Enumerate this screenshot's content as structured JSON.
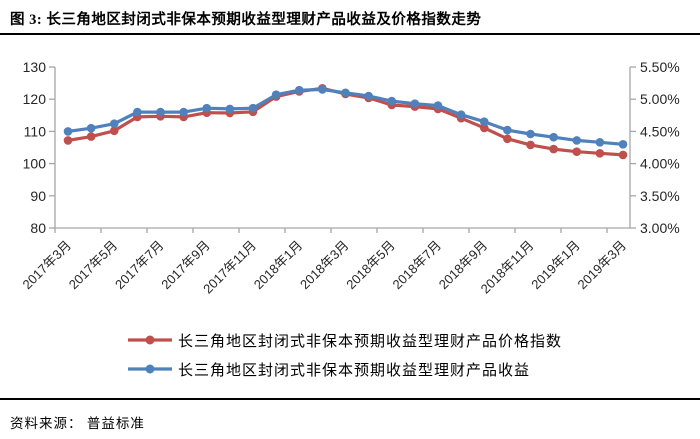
{
  "figure": {
    "title": "图 3:  长三角地区封闭式非保本预期收益型理财产品收益及价格指数走势"
  },
  "source": {
    "label": "资料来源： 普益标准"
  },
  "legend": {
    "position": "bottom",
    "items": [
      {
        "label": "长三角地区封闭式非保本预期收益型理财产品价格指数",
        "color": "#C0504D",
        "marker": "line-with-dot"
      },
      {
        "label": "长三角地区封闭式非保本预期收益型理财产品收益",
        "color": "#4F81BD",
        "marker": "line-with-dot"
      }
    ]
  },
  "chart_data": {
    "type": "line",
    "title": "长三角地区封闭式非保本预期收益型理财产品收益及价格指数走势",
    "grid": false,
    "marker": "circle",
    "categories": [
      "2017年3月",
      "2017年4月",
      "2017年5月",
      "2017年6月",
      "2017年7月",
      "2017年8月",
      "2017年9月",
      "2017年10月",
      "2017年11月",
      "2017年12月",
      "2018年1月",
      "2018年2月",
      "2018年3月",
      "2018年4月",
      "2018年5月",
      "2018年6月",
      "2018年7月",
      "2018年8月",
      "2018年9月",
      "2018年10月",
      "2018年11月",
      "2018年12月",
      "2019年1月",
      "2019年2月",
      "2019年3月"
    ],
    "x_tick_labels": [
      "2017年3月",
      "2017年5月",
      "2017年7月",
      "2017年9月",
      "2017年11月",
      "2018年1月",
      "2018年3月",
      "2018年5月",
      "2018年7月",
      "2018年9月",
      "2018年11月",
      "2019年1月",
      "2019年3月"
    ],
    "x_tick_label_every": 2,
    "left_axis": {
      "min": 80,
      "max": 130,
      "ticks": [
        "130",
        "120",
        "110",
        "100",
        "90",
        "80"
      ],
      "tick_values": [
        130,
        120,
        110,
        100,
        90,
        80
      ]
    },
    "right_axis": {
      "min": 3.0,
      "max": 5.5,
      "ticks": [
        "5.50%",
        "5.00%",
        "4.50%",
        "4.00%",
        "3.50%",
        "3.00%"
      ],
      "tick_values": [
        5.5,
        5.0,
        4.5,
        4.0,
        3.5,
        3.0
      ]
    },
    "series": [
      {
        "name": "长三角地区封闭式非保本预期收益型理财产品价格指数",
        "axis": "left",
        "color": "#C0504D",
        "values": [
          107.2,
          108.4,
          110.2,
          114.5,
          114.7,
          114.5,
          115.8,
          115.7,
          116.1,
          120.8,
          122.4,
          123.4,
          121.6,
          120.4,
          118.2,
          117.7,
          117.0,
          114.1,
          111.1,
          107.7,
          105.8,
          104.5,
          103.7,
          103.2,
          102.7
        ]
      },
      {
        "name": "长三角地区封闭式非保本预期收益型理财产品收益",
        "axis": "right",
        "color": "#4F81BD",
        "values": [
          4.5,
          4.55,
          4.62,
          4.8,
          4.8,
          4.8,
          4.86,
          4.85,
          4.86,
          5.07,
          5.14,
          5.15,
          5.1,
          5.05,
          4.97,
          4.93,
          4.9,
          4.76,
          4.65,
          4.52,
          4.46,
          4.41,
          4.36,
          4.33,
          4.3
        ]
      }
    ],
    "style": {
      "axis_line_color": "#A6A6A6",
      "line_width": 3.2,
      "marker_radius": 4.3
    }
  }
}
